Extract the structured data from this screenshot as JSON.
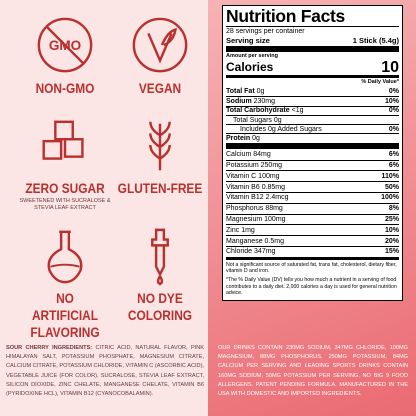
{
  "features": [
    {
      "icon_text": "GMO",
      "label": "NON-GMO"
    },
    {
      "label": "VEGAN"
    },
    {
      "label": "ZERO SUGAR",
      "note": "SWEETENED WITH SUCRALOSE & STEVIA LEAF EXTRACT"
    },
    {
      "label": "GLUTEN-FREE"
    },
    {
      "label": "NO ARTIFICIAL FLAVORING"
    },
    {
      "label": "NO DYE COLORING"
    }
  ],
  "ingredients": {
    "label": "SOUR CHERRY INGREDIENTS:",
    "text": "CITRIC ACID, NATURAL FLAVOR, PINK HIMALAYAN SALT, POTASSIUM PHOSPHATE, MAGNESIUM CITRATE, CALCIUM CITRATE, POTASSIUM CHLORIDE, VITAMIN C (ASCORBIC ACID), VEGETABLE JUICE (FOR COLOR), SUCRALOSE, STEVIA LEAF EXTRACT, SILICON DIOXIDE, ZINC CHELATE, MANGANESE CHELATE, VITAMIN B6 (PYRIDOXINE HCL), VITAMIN B12 (CYANOCOBALAMIN)."
  },
  "nutrition": {
    "title": "Nutrition Facts",
    "servings": "28 servings per container",
    "serving_size_label": "Serving size",
    "serving_size": "1 Stick",
    "serving_weight": "(5.4g)",
    "amount_per_serving": "Amount per serving",
    "calories_label": "Calories",
    "calories": "10",
    "dv_header": "% Daily Value*",
    "macros": [
      {
        "name": "Total Fat",
        "amount": "0g",
        "dv": "0%",
        "bold": true
      },
      {
        "name": "Sodium",
        "amount": "230mg",
        "dv": "10%",
        "bold": true
      },
      {
        "name": "Total Carbohydrate",
        "amount": "<1g",
        "dv": "0%",
        "bold": true
      },
      {
        "name": "Total Sugars",
        "amount": "0g",
        "indent": 1
      },
      {
        "name": "Includes 0g Added Sugars",
        "dv": "0%",
        "indent": 2
      },
      {
        "name": "Protein",
        "amount": "0g",
        "bold": true
      }
    ],
    "micros": [
      {
        "name": "Calcium",
        "amount": "84mg",
        "dv": "6%"
      },
      {
        "name": "Potassium",
        "amount": "250mg",
        "dv": "6%"
      },
      {
        "name": "Vitamin C",
        "amount": "100mg",
        "dv": "110%"
      },
      {
        "name": "Vitamin B6",
        "amount": "0.85mg",
        "dv": "50%"
      },
      {
        "name": "Vitamin B12",
        "amount": "2.4mcg",
        "dv": "100%"
      },
      {
        "name": "Phosphorus",
        "amount": "88mg",
        "dv": "8%"
      },
      {
        "name": "Magnesium",
        "amount": "100mg",
        "dv": "25%"
      },
      {
        "name": "Zinc",
        "amount": "1mg",
        "dv": "10%"
      },
      {
        "name": "Manganese",
        "amount": "0.5mg",
        "dv": "20%"
      },
      {
        "name": "Chloride",
        "amount": "347mg",
        "dv": "15%"
      }
    ],
    "footnotes": [
      "Not a significant source of saturated fat, trans fat, cholesterol, dietary fiber, vitamin D and iron.",
      "*The % Daily Value (DV) tells you how much a nutrient in a serving of food contributes to a daily diet. 2,000 calories a day is used for general nutrition advice."
    ]
  },
  "footer_note": "OUR DRINKS CONTAIN 230MG SODIUM, 347MG CHLORIDE, 100MG MAGNESIUM, 88MG PHOSPHORUS, 250MG POTASSIUM, 84MG CALCIUM PER SERVING AND LEADING SPORTS DRINKS CONTAIN 160MG SODIUM, 50MG POTASSIUM PER SERVING. NO BIG 9 FOOD ALLERGENS. PATENT PENDING FORMULA. MANUFACTURED IN THE USA WITH DOMESTIC AND IMPORTED INGREDIENTS."
}
